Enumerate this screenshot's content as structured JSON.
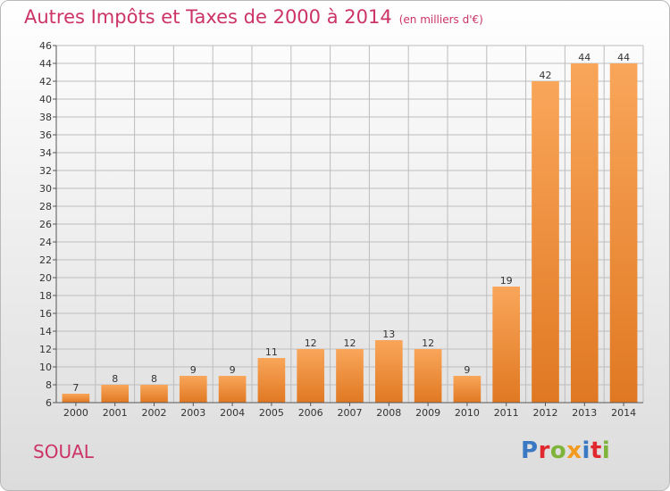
{
  "header": {
    "title": "Autres Impôts et Taxes de 2000 à 2014",
    "subtitle": "(en milliers d'€)"
  },
  "footer": {
    "commune": "SOUAL",
    "logo_text": "Proxiti",
    "logo_colors": [
      "#3b78c4",
      "#e2282f",
      "#7fb43a",
      "#f39a1f",
      "#3b78c4",
      "#e2282f",
      "#7fb43a"
    ]
  },
  "colors": {
    "bar_top": "#f9a65a",
    "bar_bottom": "#e07822",
    "title": "#cc3366"
  },
  "chart_data": {
    "type": "bar",
    "categories": [
      "2000",
      "2001",
      "2002",
      "2003",
      "2004",
      "2005",
      "2006",
      "2007",
      "2008",
      "2009",
      "2010",
      "2011",
      "2012",
      "2013",
      "2014"
    ],
    "values": [
      7,
      8,
      8,
      9,
      9,
      11,
      12,
      12,
      13,
      12,
      9,
      19,
      42,
      44,
      44
    ],
    "ylim": [
      6,
      46
    ],
    "yticks": [
      6,
      8,
      10,
      12,
      14,
      16,
      18,
      20,
      22,
      24,
      26,
      28,
      30,
      32,
      34,
      36,
      38,
      40,
      42,
      44,
      46
    ],
    "grid": true,
    "data_labels": true
  }
}
